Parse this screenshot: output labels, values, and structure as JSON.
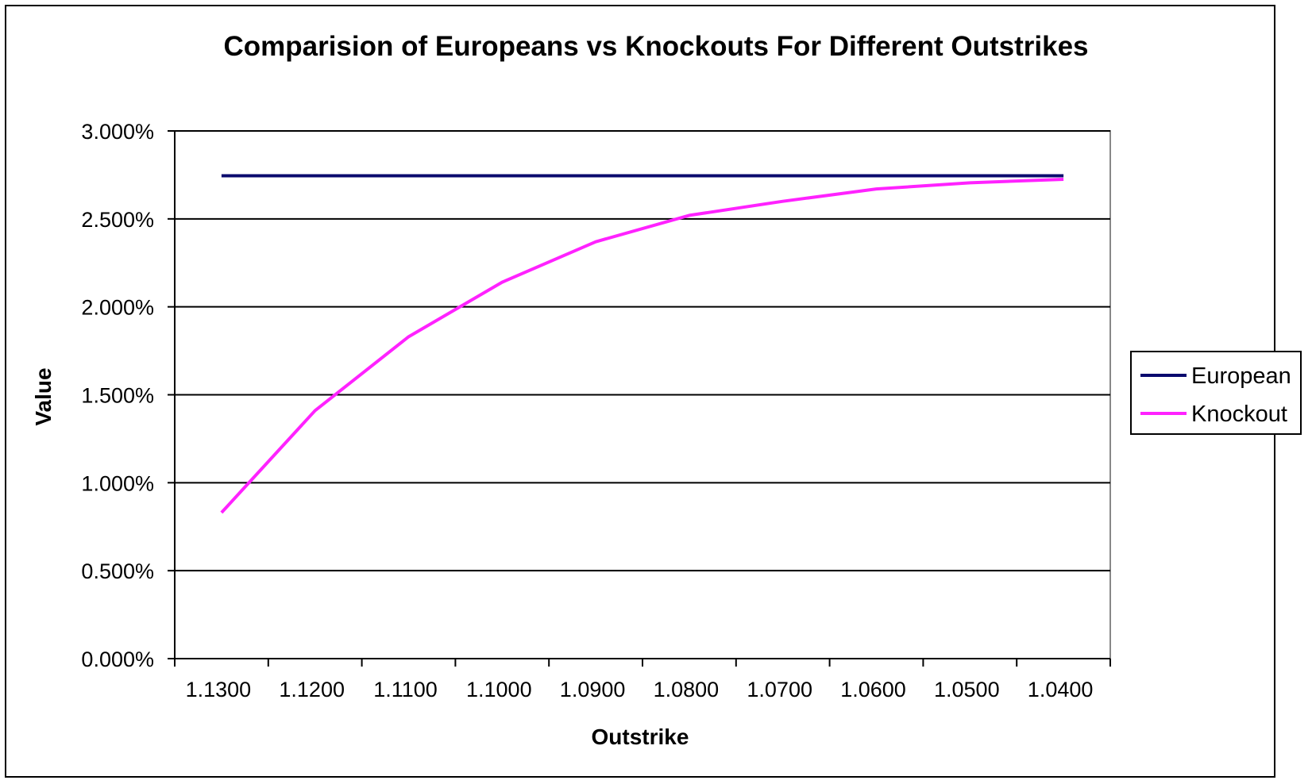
{
  "chart_data": {
    "type": "line",
    "title": "Comparision of Europeans vs Knockouts For Different Outstrikes",
    "xlabel": "Outstrike",
    "ylabel": "Value",
    "categories": [
      "1.1300",
      "1.1200",
      "1.1100",
      "1.1000",
      "1.0900",
      "1.0800",
      "1.0700",
      "1.0600",
      "1.0500",
      "1.0400"
    ],
    "yticks": [
      "0.000%",
      "0.500%",
      "1.000%",
      "1.500%",
      "2.000%",
      "2.500%",
      "3.000%"
    ],
    "ylim": [
      0,
      3
    ],
    "yunit": "%",
    "grid": true,
    "legend_position": "right",
    "series": [
      {
        "name": "European",
        "color": "#0a0a6e",
        "values": [
          2.745,
          2.745,
          2.745,
          2.745,
          2.745,
          2.745,
          2.745,
          2.745,
          2.745,
          2.745
        ]
      },
      {
        "name": "Knockout",
        "color": "#ff22ff",
        "values": [
          0.83,
          1.41,
          1.83,
          2.14,
          2.37,
          2.52,
          2.6,
          2.67,
          2.705,
          2.725
        ]
      }
    ]
  }
}
